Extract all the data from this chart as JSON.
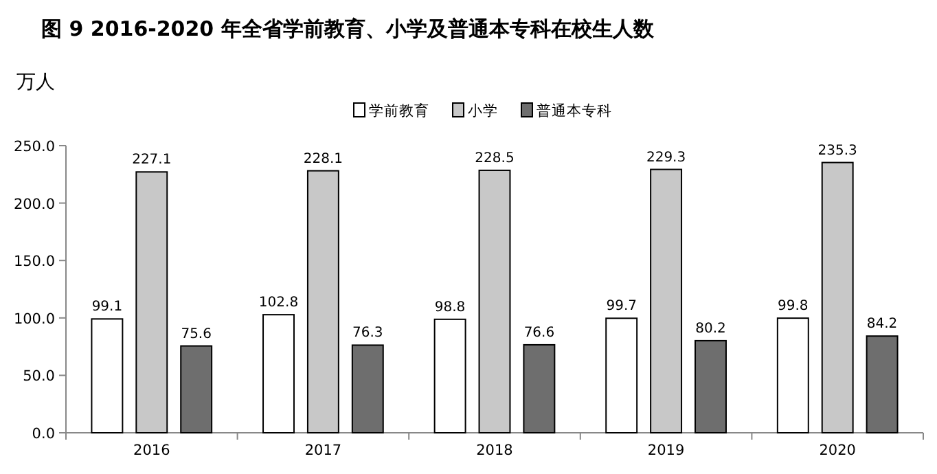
{
  "chart_data": {
    "type": "bar",
    "title": "图 9 2016-2020 年全省学前教育、小学及普通本专科在校生人数",
    "ylabel": "万人",
    "categories": [
      "2016",
      "2017",
      "2018",
      "2019",
      "2020"
    ],
    "series": [
      {
        "name": "学前教育",
        "color": "#ffffff",
        "values": [
          99.1,
          102.8,
          98.8,
          99.7,
          99.8
        ]
      },
      {
        "name": "小学",
        "color": "#c8c8c8",
        "values": [
          227.1,
          228.1,
          228.5,
          229.3,
          235.3
        ]
      },
      {
        "name": "普通本专科",
        "color": "#6e6e6e",
        "values": [
          75.6,
          76.3,
          76.6,
          80.2,
          84.2
        ]
      }
    ],
    "ylim": [
      0,
      250
    ],
    "yticks": [
      {
        "value": 0,
        "label": "0.0"
      },
      {
        "value": 50,
        "label": "50.0"
      },
      {
        "value": 100,
        "label": "100.0"
      },
      {
        "value": 150,
        "label": "150.0"
      },
      {
        "value": 200,
        "label": "200.0"
      },
      {
        "value": 250,
        "label": "250.0"
      }
    ],
    "data_labels": true,
    "grid": false,
    "legend": "top"
  }
}
